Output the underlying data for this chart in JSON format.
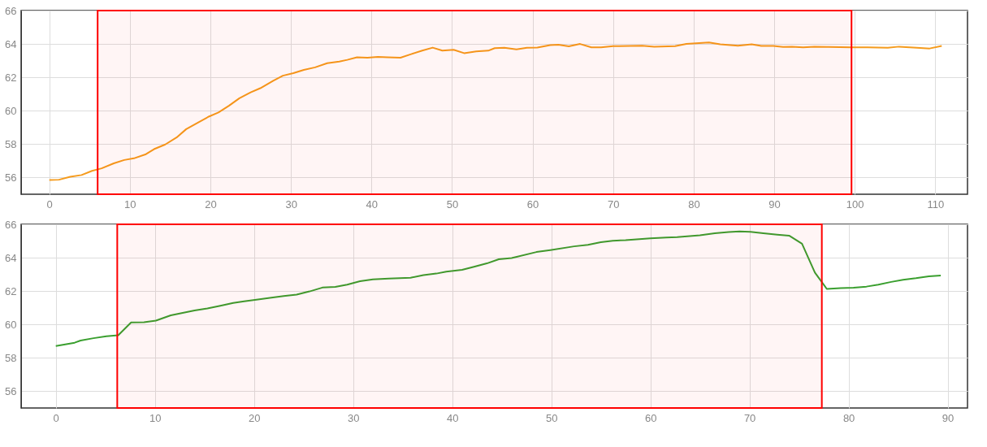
{
  "chart_data": [
    {
      "type": "line",
      "x": [
        0,
        1.2,
        2.6,
        4,
        5.3,
        6.5,
        8,
        9.3,
        10.5,
        12,
        13,
        14.4,
        15.8,
        17,
        18.5,
        19.8,
        21,
        22.3,
        23.6,
        25,
        26.2,
        27.8,
        29,
        30.3,
        31.6,
        33,
        34.5,
        36,
        37,
        38.2,
        39.5,
        40.8,
        42,
        43.6,
        45,
        46.3,
        47.6,
        48.8,
        50.2,
        51.5,
        53,
        54.5,
        55.3,
        56.5,
        58,
        59.3,
        60.6,
        62.2,
        63.2,
        64.5,
        65.9,
        67.3,
        68.5,
        70,
        73.6,
        75.1,
        77.7,
        79.1,
        80.3,
        81.9,
        83.3,
        85.5,
        87.2,
        88.4,
        89.9,
        91.1,
        92.2,
        93.6,
        95,
        96.7,
        99.6,
        101.6,
        104.1,
        105.5,
        107.7,
        109.3,
        110.8
      ],
      "series": [
        {
          "color": "#f59b1c",
          "values": [
            55.85,
            55.87,
            56.05,
            56.15,
            56.4,
            56.55,
            56.85,
            57.05,
            57.15,
            57.4,
            57.7,
            57.98,
            58.4,
            58.9,
            59.3,
            59.65,
            59.9,
            60.3,
            60.75,
            61.1,
            61.35,
            61.8,
            62.1,
            62.25,
            62.45,
            62.6,
            62.85,
            62.95,
            63.05,
            63.2,
            63.18,
            63.22,
            63.2,
            63.18,
            63.4,
            63.6,
            63.78,
            63.6,
            63.65,
            63.45,
            63.55,
            63.6,
            63.75,
            63.77,
            63.68,
            63.77,
            63.79,
            63.93,
            63.96,
            63.86,
            64,
            63.8,
            63.8,
            63.87,
            63.89,
            63.84,
            63.87,
            64,
            64.04,
            64.09,
            63.98,
            63.9,
            63.98,
            63.88,
            63.88,
            63.82,
            63.84,
            63.8,
            63.84,
            63.82,
            63.8,
            63.8,
            63.77,
            63.84,
            63.77,
            63.73,
            63.88
          ]
        }
      ],
      "xlim": [
        -3.5,
        114
      ],
      "xticks": [
        0,
        10,
        20,
        30,
        40,
        50,
        60,
        70,
        80,
        90,
        100,
        110
      ],
      "ylim": [
        55,
        66
      ],
      "yticks": [
        56,
        58,
        60,
        62,
        64,
        66
      ],
      "grid": true,
      "bands": [
        {
          "axis": "x",
          "from": 6,
          "to": 99.6,
          "color": "#ff0000"
        }
      ]
    },
    {
      "type": "line",
      "x": [
        0,
        1.9,
        2.5,
        3.8,
        5.1,
        6.3,
        7.6,
        8.9,
        10.1,
        11.6,
        14,
        15.3,
        16.6,
        17.9,
        19,
        20.4,
        21.6,
        23,
        24.3,
        25.6,
        26.9,
        28.2,
        29.4,
        30.7,
        32,
        33.6,
        35.8,
        37.1,
        38.4,
        39.4,
        41,
        42.2,
        43.5,
        44.7,
        46,
        48.5,
        49.9,
        52.3,
        53.7,
        55,
        56.2,
        57.5,
        60,
        61.6,
        62.7,
        65,
        66.5,
        67.9,
        69,
        70.1,
        71.4,
        72.8,
        74,
        75.3,
        76.6,
        77.8,
        79.2,
        80.5,
        81.8,
        83,
        84.3,
        85.5,
        86.8,
        88.1,
        89.3
      ],
      "series": [
        {
          "color": "#3a9f2f",
          "values": [
            58.71,
            58.91,
            59.04,
            59.18,
            59.3,
            59.36,
            60.12,
            60.14,
            60.23,
            60.55,
            60.84,
            60.96,
            61.12,
            61.29,
            61.39,
            61.5,
            61.59,
            61.7,
            61.79,
            61.98,
            62.21,
            62.25,
            62.39,
            62.59,
            62.7,
            62.75,
            62.8,
            62.96,
            63.05,
            63.16,
            63.27,
            63.46,
            63.66,
            63.91,
            63.98,
            64.34,
            64.46,
            64.68,
            64.77,
            64.93,
            65.02,
            65.05,
            65.16,
            65.21,
            65.23,
            65.34,
            65.46,
            65.54,
            65.57,
            65.55,
            65.46,
            65.38,
            65.32,
            64.84,
            63.11,
            62.13,
            62.18,
            62.2,
            62.27,
            62.39,
            62.55,
            62.68,
            62.77,
            62.88,
            62.93
          ]
        }
      ],
      "xlim": [
        -3.5,
        92
      ],
      "xticks": [
        0,
        10,
        20,
        30,
        40,
        50,
        60,
        70,
        80,
        90
      ],
      "ylim": [
        55,
        66
      ],
      "yticks": [
        56,
        58,
        60,
        62,
        64,
        66
      ],
      "grid": true,
      "bands": [
        {
          "axis": "x",
          "from": 6.2,
          "to": 77.3,
          "color": "#ff0000"
        }
      ]
    }
  ]
}
